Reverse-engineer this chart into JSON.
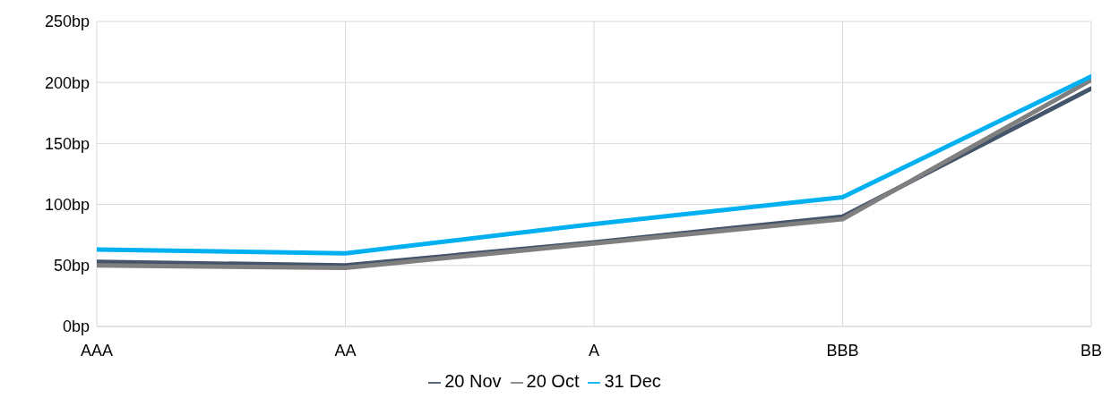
{
  "chart_data": {
    "type": "line",
    "categories": [
      "AAA",
      "AA",
      "A",
      "BBB",
      "BB"
    ],
    "series": [
      {
        "name": "20 Nov",
        "color": "#44546a",
        "values": [
          53,
          50,
          69,
          90,
          195
        ]
      },
      {
        "name": "20 Oct",
        "color": "#7f7f7f",
        "values": [
          50,
          48,
          68,
          88,
          202
        ]
      },
      {
        "name": "31 Dec",
        "color": "#00b0f0",
        "values": [
          63,
          60,
          84,
          106,
          205
        ]
      }
    ],
    "ylim": [
      0,
      250
    ],
    "yticks": [
      {
        "value": 0,
        "label": "0bp"
      },
      {
        "value": 50,
        "label": "50bp"
      },
      {
        "value": 100,
        "label": "100bp"
      },
      {
        "value": 150,
        "label": "150bp"
      },
      {
        "value": 200,
        "label": "200bp"
      },
      {
        "value": 250,
        "label": "250bp"
      }
    ],
    "grid": true,
    "legend": "bottom",
    "marker": "none",
    "line_style": "solid"
  }
}
